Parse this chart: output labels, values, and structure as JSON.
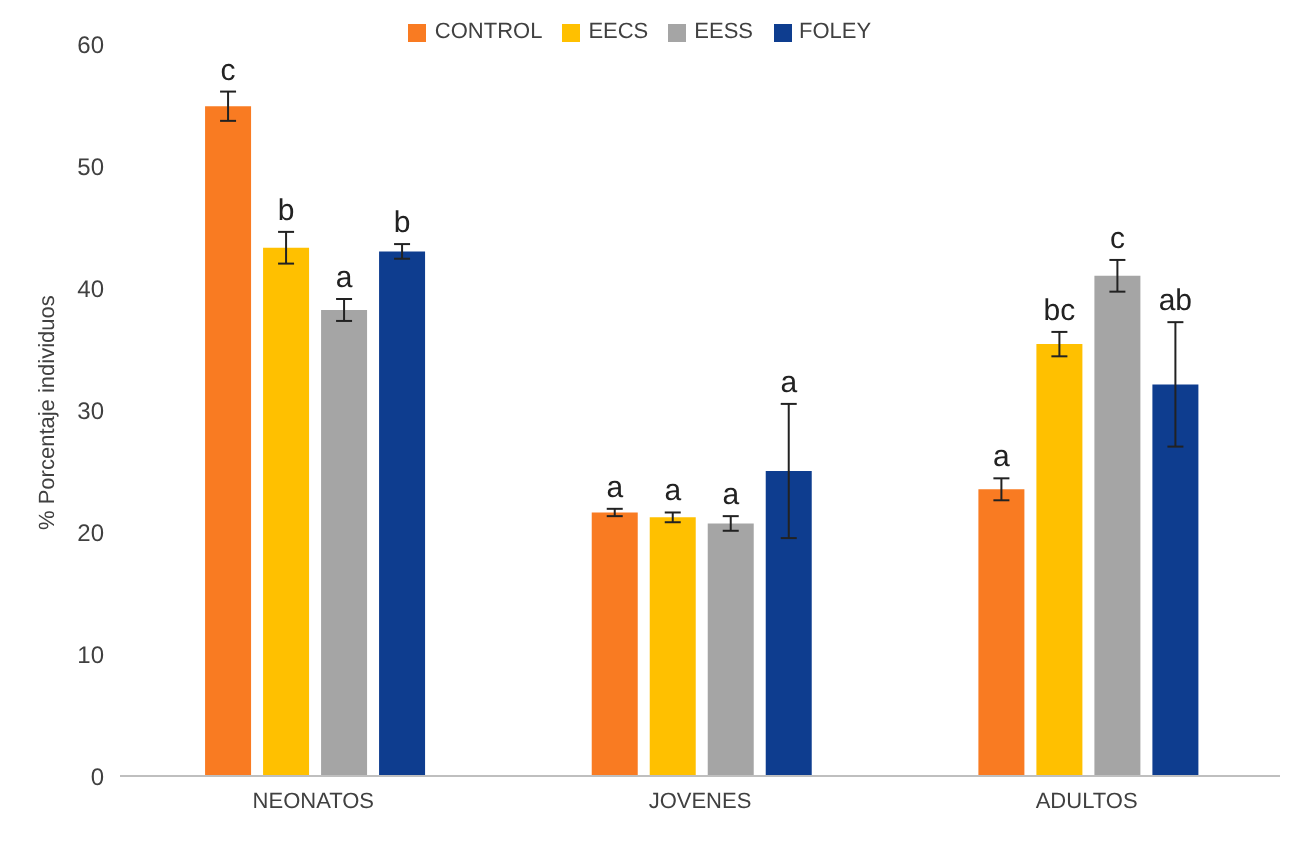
{
  "chart_data": {
    "type": "bar",
    "ylabel": "% Porcentaje individuos",
    "categories": [
      "NEONATOS",
      "JOVENES",
      "ADULTOS"
    ],
    "ylim": [
      0,
      60
    ],
    "yticks": [
      0,
      10,
      20,
      30,
      40,
      50,
      60
    ],
    "grid": false,
    "legend": "top",
    "series": [
      {
        "name": "CONTROL",
        "color": "#f97b22",
        "values": [
          54.9,
          21.6,
          23.5
        ],
        "errors": [
          1.2,
          0.3,
          0.9
        ],
        "value_labels": [
          "c",
          "a",
          "a"
        ]
      },
      {
        "name": "EECS",
        "color": "#ffc000",
        "values": [
          43.3,
          21.2,
          35.4
        ],
        "errors": [
          1.3,
          0.4,
          1.0
        ],
        "value_labels": [
          "b",
          "a",
          "bc"
        ]
      },
      {
        "name": "EESS",
        "color": "#a5a5a5",
        "values": [
          38.2,
          20.7,
          41.0
        ],
        "errors": [
          0.9,
          0.6,
          1.3
        ],
        "value_labels": [
          "a",
          "a",
          "c"
        ]
      },
      {
        "name": "FOLEY",
        "color": "#0e3d8f",
        "values": [
          43.0,
          25.0,
          32.1
        ],
        "errors": [
          0.6,
          5.5,
          5.1
        ],
        "value_labels": [
          "b",
          "a",
          "ab"
        ]
      }
    ]
  }
}
